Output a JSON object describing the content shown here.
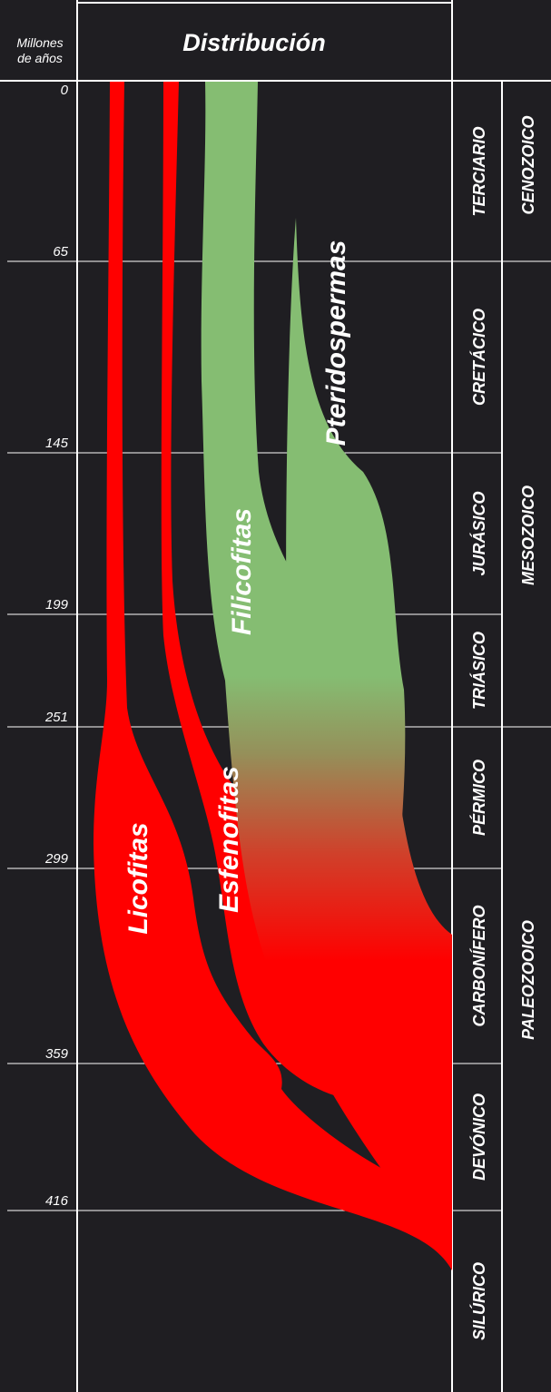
{
  "header": {
    "axis_title_line1": "Millones",
    "axis_title_line2": "de años",
    "title": "Distribución"
  },
  "colors": {
    "background": "#1f1e22",
    "red": "#ff0000",
    "green": "#85bd72",
    "line": "#ffffff"
  },
  "ticks": [
    {
      "label": "0",
      "value": 0
    },
    {
      "label": "65",
      "value": 65
    },
    {
      "label": "145",
      "value": 145
    },
    {
      "label": "199",
      "value": 199
    },
    {
      "label": "251",
      "value": 251
    },
    {
      "label": "299",
      "value": 299
    },
    {
      "label": "359",
      "value": 359
    },
    {
      "label": "416",
      "value": 416
    }
  ],
  "periods": [
    {
      "name": "TERCIARIO",
      "start": 0,
      "end": 65
    },
    {
      "name": "CRETÁCICO",
      "start": 65,
      "end": 145
    },
    {
      "name": "JURÁSICO",
      "start": 145,
      "end": 199
    },
    {
      "name": "TRIÁSICO",
      "start": 199,
      "end": 251
    },
    {
      "name": "PÉRMICO",
      "start": 251,
      "end": 299
    },
    {
      "name": "CARBONÍFERO",
      "start": 299,
      "end": 359
    },
    {
      "name": "DEVÓNICO",
      "start": 359,
      "end": 416
    },
    {
      "name": "SILÚRICO",
      "start": 416,
      "end": 444
    }
  ],
  "eras": [
    {
      "name": "CENOZOICO",
      "start": 0,
      "end": 65
    },
    {
      "name": "MESOZOICO",
      "start": 65,
      "end": 251
    },
    {
      "name": "PALEOZOOICO",
      "start": 251,
      "end": 444
    }
  ],
  "groups": [
    {
      "name": "Licofitas",
      "color_role": "red"
    },
    {
      "name": "Esfenofitas",
      "color_role": "red"
    },
    {
      "name": "Filicofitas",
      "color_role": "gradient"
    },
    {
      "name": "Pteridospermas",
      "color_role": "gradient"
    }
  ]
}
